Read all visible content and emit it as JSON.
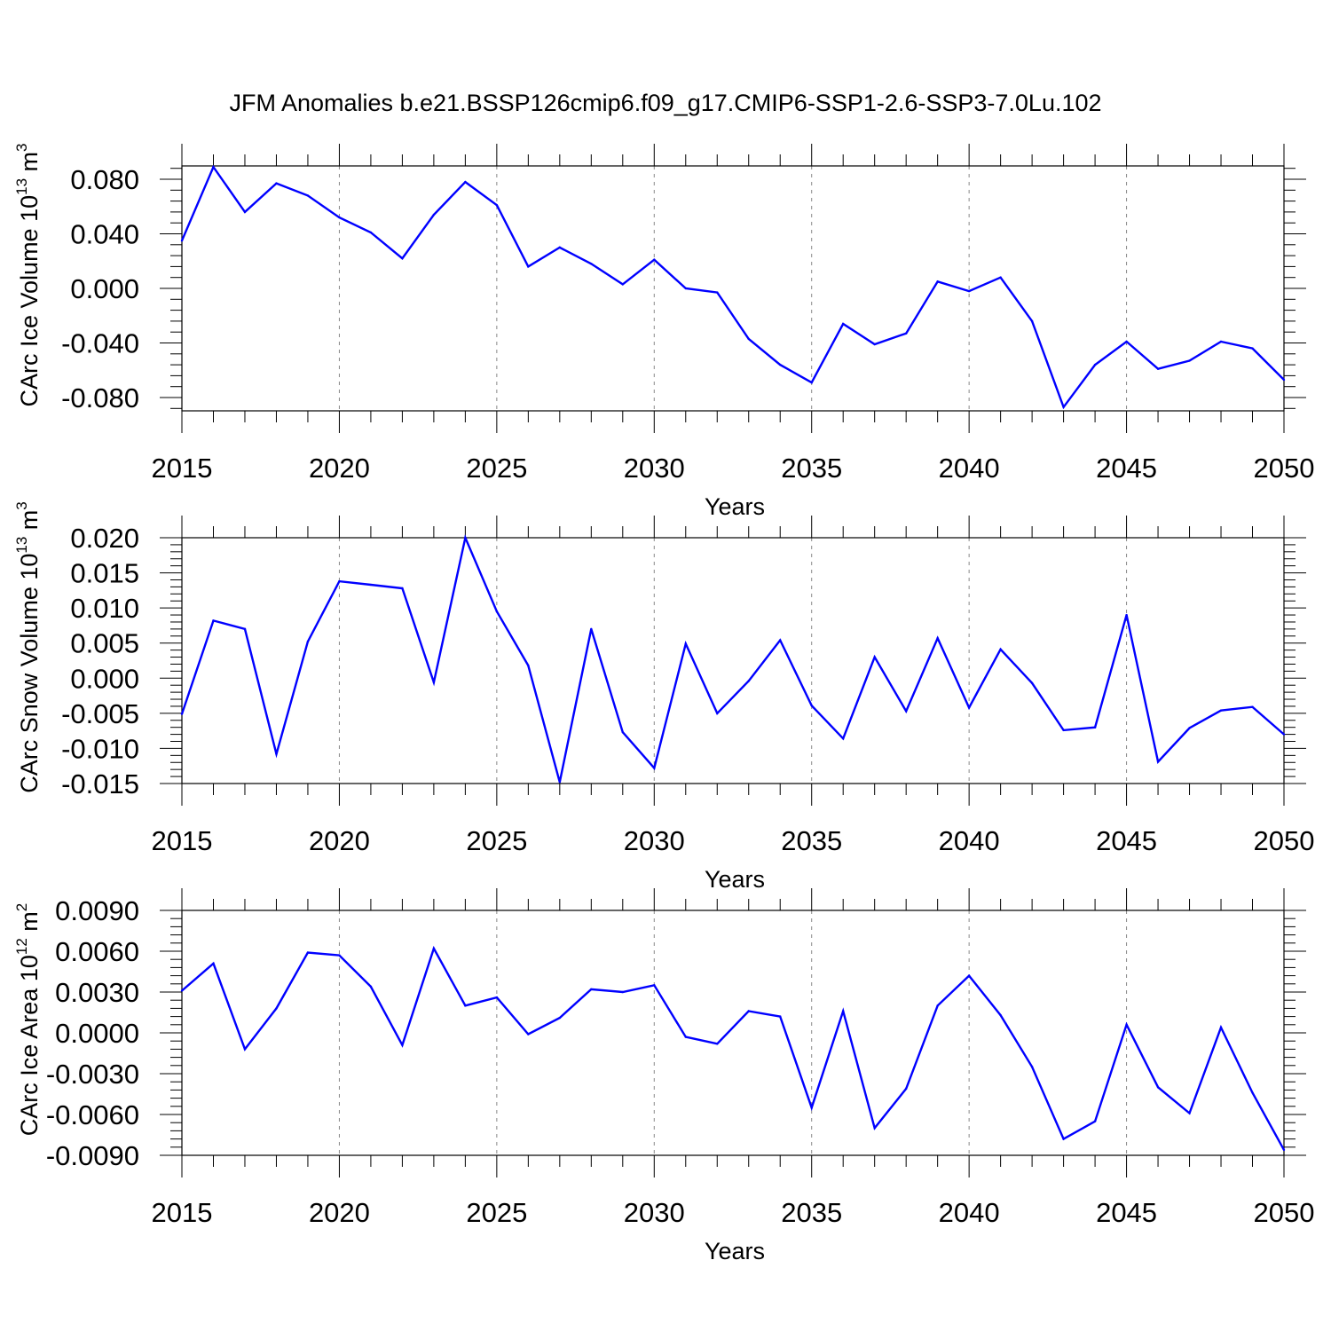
{
  "title": "JFM Anomalies b.e21.BSSP126cmip6.f09_g17.CMIP6-SSP1-2.6-SSP3-7.0Lu.102",
  "colors": {
    "line": "#0000ff",
    "axis": "#000000",
    "grid": "#888888"
  },
  "chart_data": [
    {
      "type": "line",
      "ylabel": {
        "text": "CArc Ice Volume 10",
        "exp": "13",
        "unit": " m",
        "unit_exp": "3"
      },
      "xlabel": "Years",
      "xlim": [
        2015,
        2050
      ],
      "ylim": [
        -0.09,
        0.09
      ],
      "xticks": [
        2015,
        2020,
        2025,
        2030,
        2035,
        2040,
        2045,
        2050
      ],
      "xtick_labels": [
        "2015",
        "2020",
        "2025",
        "2030",
        "2035",
        "2040",
        "2045",
        "2050"
      ],
      "yticks": [
        0.08,
        0.04,
        0.0,
        -0.04,
        -0.08
      ],
      "ytick_labels": [
        "0.080",
        "0.040",
        "0.000",
        "-0.040",
        "-0.080"
      ],
      "grid": "vertical dashed at major x ticks",
      "series": [
        {
          "values": [
            0.035,
            0.089,
            0.056,
            0.077,
            0.068,
            0.052,
            0.041,
            0.022,
            0.054,
            0.078,
            0.061,
            0.016,
            0.03,
            0.018,
            0.003,
            0.021,
            0.0,
            -0.003,
            -0.037,
            -0.056,
            -0.069,
            -0.026,
            -0.041,
            -0.033,
            0.005,
            -0.002,
            0.008,
            -0.024,
            -0.087,
            -0.056,
            -0.039,
            -0.059,
            -0.053,
            -0.039,
            -0.044,
            -0.067
          ]
        }
      ],
      "x": [
        2015,
        2016,
        2017,
        2018,
        2019,
        2020,
        2021,
        2022,
        2023,
        2024,
        2025,
        2026,
        2027,
        2028,
        2029,
        2030,
        2031,
        2032,
        2033,
        2034,
        2035,
        2036,
        2037,
        2038,
        2039,
        2040,
        2041,
        2042,
        2043,
        2044,
        2045,
        2046,
        2047,
        2048,
        2049,
        2050
      ]
    },
    {
      "type": "line",
      "ylabel": {
        "text": "CArc Snow Volume 10",
        "exp": "13",
        "unit": " m",
        "unit_exp": "3"
      },
      "xlabel": "Years",
      "xlim": [
        2015,
        2050
      ],
      "ylim": [
        -0.015,
        0.02
      ],
      "xticks": [
        2015,
        2020,
        2025,
        2030,
        2035,
        2040,
        2045,
        2050
      ],
      "xtick_labels": [
        "2015",
        "2020",
        "2025",
        "2030",
        "2035",
        "2040",
        "2045",
        "2050"
      ],
      "yticks": [
        0.02,
        0.015,
        0.01,
        0.005,
        0.0,
        -0.005,
        -0.01,
        -0.015
      ],
      "ytick_labels": [
        "0.020",
        "0.015",
        "0.010",
        "0.005",
        "0.000",
        "-0.005",
        "-0.010",
        "-0.015"
      ],
      "grid": "vertical dashed at major x ticks",
      "series": [
        {
          "values": [
            -0.0051,
            0.0082,
            0.007,
            -0.0108,
            0.0052,
            0.0138,
            0.0133,
            0.0128,
            -0.0006,
            0.02,
            0.0095,
            0.0018,
            -0.0148,
            0.007,
            -0.0077,
            -0.0128,
            0.0049,
            -0.005,
            -0.0004,
            0.0054,
            -0.0039,
            -0.0086,
            0.003,
            -0.0047,
            0.0057,
            -0.0042,
            0.0041,
            -0.0007,
            -0.0074,
            -0.007,
            0.009,
            -0.0119,
            -0.0071,
            -0.0046,
            -0.0041,
            -0.008
          ]
        }
      ],
      "x": [
        2015,
        2016,
        2017,
        2018,
        2019,
        2020,
        2021,
        2022,
        2023,
        2024,
        2025,
        2026,
        2027,
        2028,
        2029,
        2030,
        2031,
        2032,
        2033,
        2034,
        2035,
        2036,
        2037,
        2038,
        2039,
        2040,
        2041,
        2042,
        2043,
        2044,
        2045,
        2046,
        2047,
        2048,
        2049,
        2050
      ]
    },
    {
      "type": "line",
      "ylabel": {
        "text": "CArc Ice Area 10",
        "exp": "12",
        "unit": " m",
        "unit_exp": "2"
      },
      "xlabel": "Years",
      "xlim": [
        2015,
        2050
      ],
      "ylim": [
        -0.009,
        0.009
      ],
      "xticks": [
        2015,
        2020,
        2025,
        2030,
        2035,
        2040,
        2045,
        2050
      ],
      "xtick_labels": [
        "2015",
        "2020",
        "2025",
        "2030",
        "2035",
        "2040",
        "2045",
        "2050"
      ],
      "yticks": [
        0.009,
        0.006,
        0.003,
        0.0,
        -0.003,
        -0.006,
        -0.009
      ],
      "ytick_labels": [
        "0.0090",
        "0.0060",
        "0.0030",
        "0.0000",
        "-0.0030",
        "-0.0060",
        "-0.0090"
      ],
      "grid": "vertical dashed at major x ticks",
      "series": [
        {
          "values": [
            0.0031,
            0.0051,
            -0.0012,
            0.0018,
            0.0059,
            0.0057,
            0.0034,
            -0.0009,
            0.0062,
            0.002,
            0.0026,
            -0.0001,
            0.0011,
            0.0032,
            0.003,
            0.0035,
            -0.0003,
            -0.0008,
            0.0016,
            0.0012,
            -0.0055,
            0.0016,
            -0.007,
            -0.0041,
            0.002,
            0.0042,
            0.0013,
            -0.0025,
            -0.0078,
            -0.0065,
            0.0006,
            -0.004,
            -0.0059,
            0.0004,
            -0.0044,
            -0.0086
          ]
        }
      ],
      "x": [
        2015,
        2016,
        2017,
        2018,
        2019,
        2020,
        2021,
        2022,
        2023,
        2024,
        2025,
        2026,
        2027,
        2028,
        2029,
        2030,
        2031,
        2032,
        2033,
        2034,
        2035,
        2036,
        2037,
        2038,
        2039,
        2040,
        2041,
        2042,
        2043,
        2044,
        2045,
        2046,
        2047,
        2048,
        2049,
        2050
      ]
    }
  ]
}
